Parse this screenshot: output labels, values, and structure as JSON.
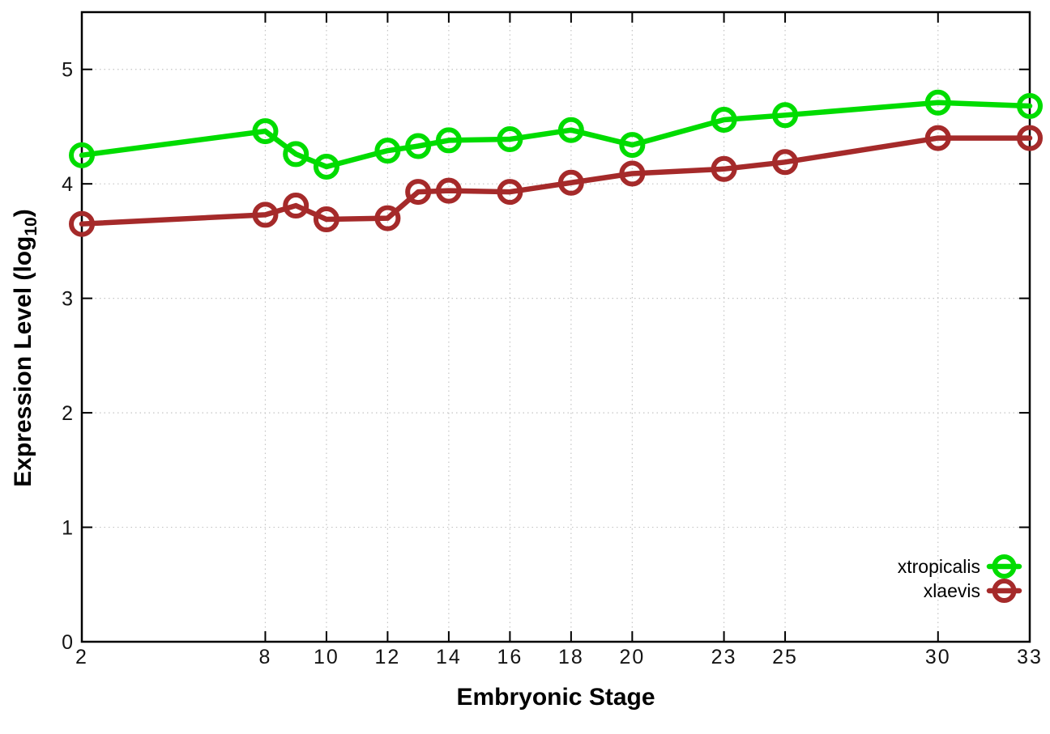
{
  "chart_data": {
    "type": "line",
    "title": "",
    "xlabel": "Embryonic Stage",
    "ylabel": "Expression Level (log10)",
    "ylabel_parts": {
      "main": "Expression Level (log",
      "sub": "10",
      "close": ")"
    },
    "x": [
      2,
      8,
      9,
      10,
      12,
      13,
      14,
      16,
      18,
      20,
      23,
      25,
      30,
      33
    ],
    "series": [
      {
        "name": "xtropicalis",
        "color": "#00dc00",
        "values": [
          4.25,
          4.46,
          4.26,
          4.15,
          4.29,
          4.33,
          4.38,
          4.39,
          4.47,
          4.34,
          4.56,
          4.6,
          4.71,
          4.68
        ]
      },
      {
        "name": "xlaevis",
        "color": "#a52a2a",
        "values": [
          3.65,
          3.73,
          3.81,
          3.69,
          3.7,
          3.93,
          3.94,
          3.93,
          4.01,
          4.09,
          4.13,
          4.19,
          4.4,
          4.4
        ]
      }
    ],
    "xticks": [
      2,
      8,
      10,
      12,
      14,
      16,
      18,
      20,
      23,
      25,
      30,
      33
    ],
    "yticks": [
      0,
      1,
      2,
      3,
      4,
      5
    ],
    "xlim": [
      2,
      33
    ],
    "ylim": [
      0,
      5.5
    ],
    "grid": true,
    "legend_position": "bottom-right",
    "marker": "open-circle"
  },
  "colors": {
    "grid": "#c4c4c4",
    "border": "#000000",
    "tick_label": "#141414"
  }
}
